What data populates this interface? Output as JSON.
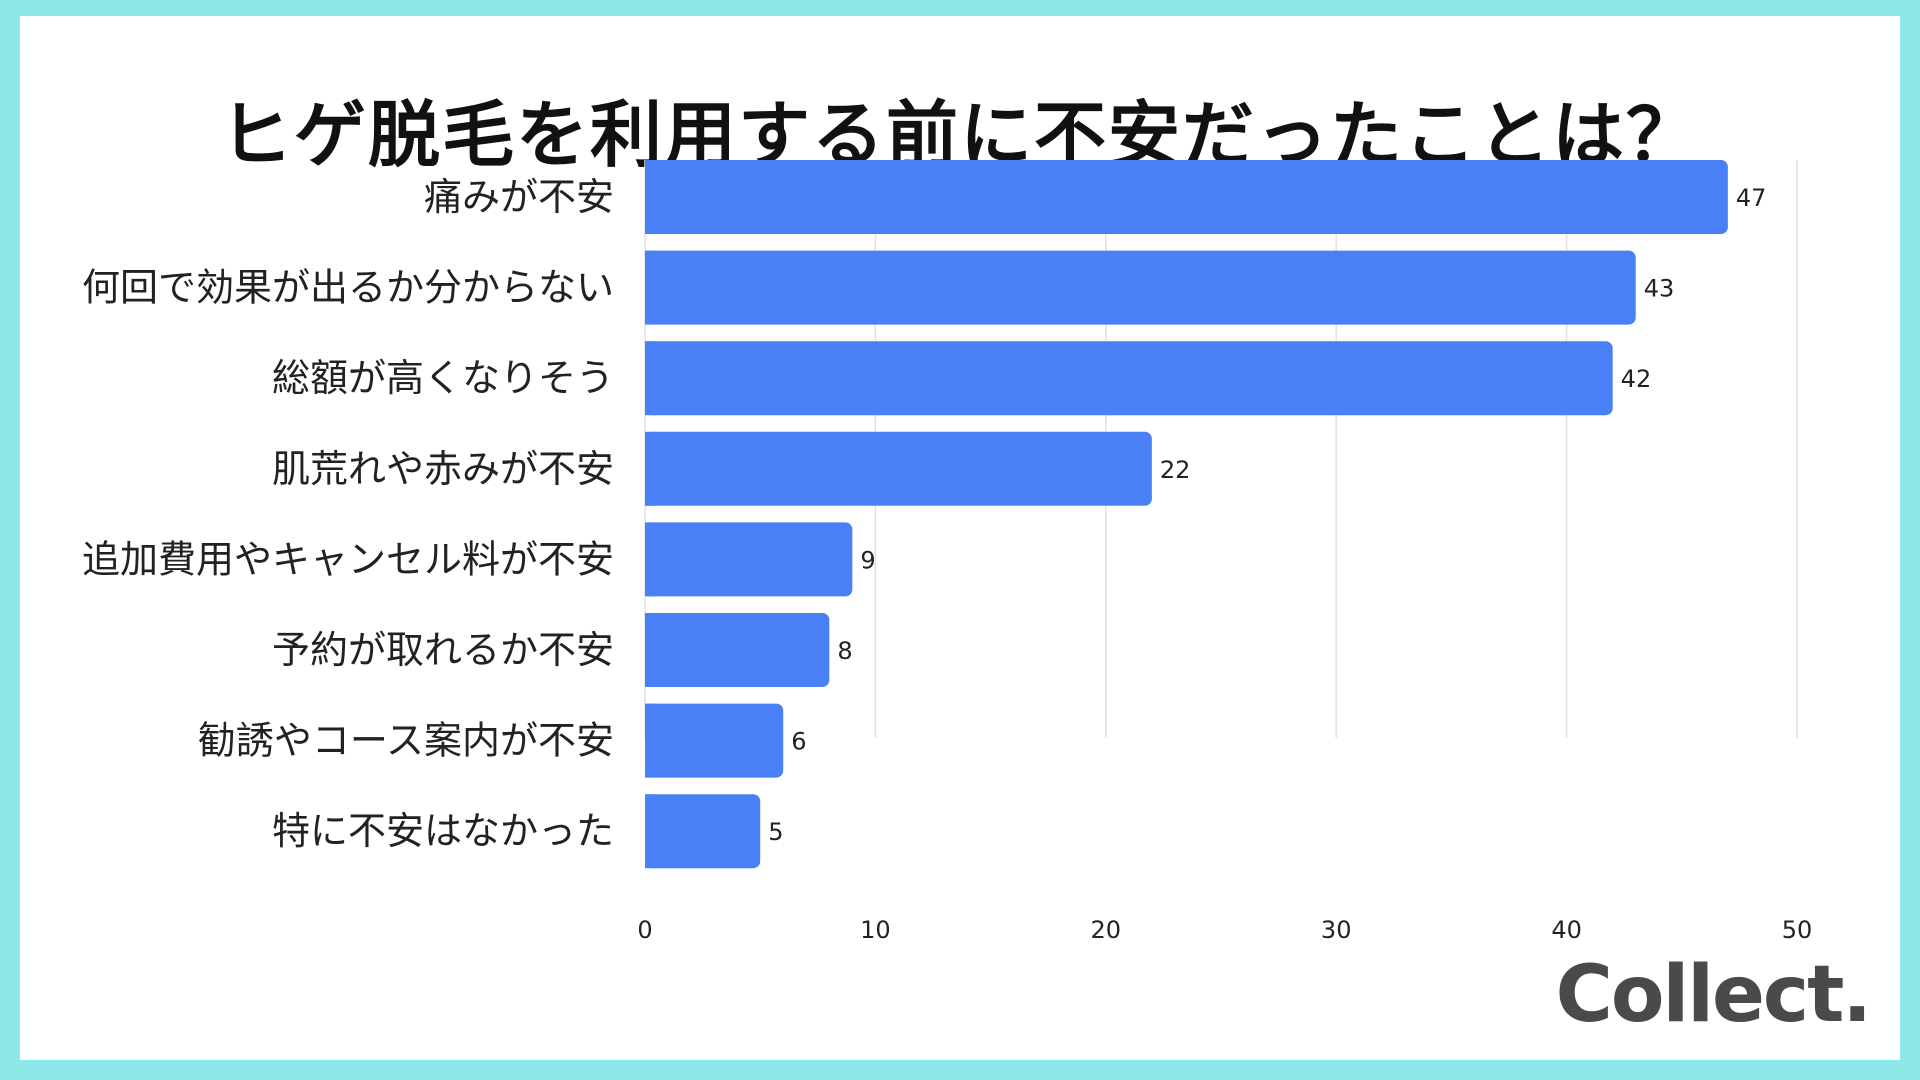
{
  "chart_data": {
    "type": "bar",
    "orientation": "horizontal",
    "title": "ヒゲ脱毛を利用する前に不安だったことは？",
    "categories": [
      "痛みが不安",
      "何回で効果が出るか分からない",
      "総額が高くなりそう",
      "肌荒れや赤みが不安",
      "追加費用やキャンセル料が不安",
      "予約が取れるか不安",
      "勧誘やコース案内が不安",
      "特に不安はなかった"
    ],
    "values": [
      47,
      43,
      42,
      22,
      9,
      8,
      6,
      5
    ],
    "xlim": [
      0,
      50
    ],
    "xticks": [
      0,
      10,
      20,
      30,
      40,
      50
    ],
    "grid": true,
    "bar_color": "#4a80f5"
  },
  "logo": "Collect."
}
